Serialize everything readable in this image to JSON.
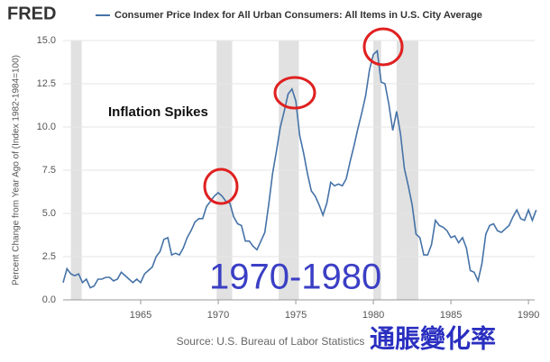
{
  "chart_data": {
    "type": "line",
    "logo": "FRED",
    "title": "Consumer Price Index for All Urban Consumers: All Items in U.S. City Average",
    "y_label": "Percent Change from Year Ago of (Index 1982-1984=100)",
    "source": "Source: U.S. Bureau of Labor Statistics",
    "annotations": [
      "Inflation Spikes",
      "1970-1980",
      "通脹變化率"
    ],
    "x": [
      1960,
      1960.25,
      1960.5,
      1960.75,
      1961,
      1961.25,
      1961.5,
      1961.75,
      1962,
      1962.25,
      1962.5,
      1962.75,
      1963,
      1963.25,
      1963.5,
      1963.75,
      1964,
      1964.25,
      1964.5,
      1964.75,
      1965,
      1965.25,
      1965.5,
      1965.75,
      1966,
      1966.25,
      1966.5,
      1966.75,
      1967,
      1967.25,
      1967.5,
      1967.75,
      1968,
      1968.25,
      1968.5,
      1968.75,
      1969,
      1969.25,
      1969.5,
      1969.75,
      1970,
      1970.25,
      1970.5,
      1970.75,
      1971,
      1971.25,
      1971.5,
      1971.75,
      1972,
      1972.25,
      1972.5,
      1972.75,
      1973,
      1973.25,
      1973.5,
      1973.75,
      1974,
      1974.25,
      1974.5,
      1974.75,
      1975,
      1975.25,
      1975.5,
      1975.75,
      1976,
      1976.25,
      1976.5,
      1976.75,
      1977,
      1977.25,
      1977.5,
      1977.75,
      1978,
      1978.25,
      1978.5,
      1978.75,
      1979,
      1979.25,
      1979.5,
      1979.75,
      1980,
      1980.25,
      1980.5,
      1980.75,
      1981,
      1981.25,
      1981.5,
      1981.75,
      1982,
      1982.25,
      1982.5,
      1982.75,
      1983,
      1983.25,
      1983.5,
      1983.75,
      1984,
      1984.25,
      1984.5,
      1984.75,
      1985,
      1985.25,
      1985.5,
      1985.75,
      1986,
      1986.25,
      1986.5,
      1986.75,
      1987,
      1987.25,
      1987.5,
      1987.75,
      1988,
      1988.25,
      1988.5,
      1988.75,
      1989,
      1989.25,
      1989.5,
      1989.75,
      1990,
      1990.25,
      1990.5
    ],
    "series": [
      {
        "name": "Consumer Price Index for All Urban Consumers: All Items in U.S. City Average",
        "color": "#4572a7",
        "values": [
          1.0,
          1.8,
          1.5,
          1.4,
          1.5,
          1.0,
          1.2,
          0.7,
          0.8,
          1.2,
          1.2,
          1.3,
          1.3,
          1.1,
          1.2,
          1.6,
          1.4,
          1.2,
          1.0,
          1.2,
          1.0,
          1.5,
          1.7,
          1.9,
          2.5,
          2.8,
          3.5,
          3.6,
          2.6,
          2.7,
          2.6,
          3.0,
          3.6,
          4.0,
          4.5,
          4.7,
          4.7,
          5.4,
          5.7,
          6.0,
          6.2,
          6.0,
          5.7,
          5.6,
          4.8,
          4.4,
          4.3,
          3.4,
          3.4,
          3.1,
          2.9,
          3.4,
          3.9,
          5.5,
          7.3,
          8.6,
          10.0,
          10.9,
          11.9,
          12.2,
          11.5,
          9.5,
          8.5,
          7.3,
          6.3,
          6.0,
          5.5,
          4.9,
          5.6,
          6.8,
          6.6,
          6.7,
          6.6,
          7.0,
          8.0,
          8.9,
          9.9,
          10.8,
          11.8,
          13.3,
          14.2,
          14.4,
          12.6,
          12.5,
          11.3,
          9.8,
          10.9,
          9.6,
          7.6,
          6.6,
          5.5,
          3.8,
          3.6,
          2.6,
          2.6,
          3.2,
          4.6,
          4.3,
          4.2,
          4.0,
          3.6,
          3.7,
          3.3,
          3.6,
          3.0,
          1.7,
          1.6,
          1.1,
          2.1,
          3.8,
          4.3,
          4.4,
          4.0,
          3.9,
          4.1,
          4.3,
          4.8,
          5.2,
          4.7,
          4.6,
          5.2,
          4.6,
          5.2
        ]
      }
    ],
    "recessions": [
      [
        1960.5,
        1961.2
      ],
      [
        1969.9,
        1970.9
      ],
      [
        1973.9,
        1975.2
      ],
      [
        1980.0,
        1980.5
      ],
      [
        1981.5,
        1982.9
      ]
    ],
    "xlim": [
      1960,
      1990.4
    ],
    "xticks": [
      1965,
      1970,
      1975,
      1980,
      1985,
      1990
    ],
    "ylim": [
      0,
      15
    ],
    "yticks": [
      {
        "value": 0,
        "label": "0.0"
      },
      2.5,
      {
        "value": 5,
        "label": "5.0"
      },
      7.5,
      {
        "value": 10,
        "label": "10.0"
      },
      12.5,
      {
        "value": 15,
        "label": "15.0"
      }
    ],
    "grid": true
  }
}
